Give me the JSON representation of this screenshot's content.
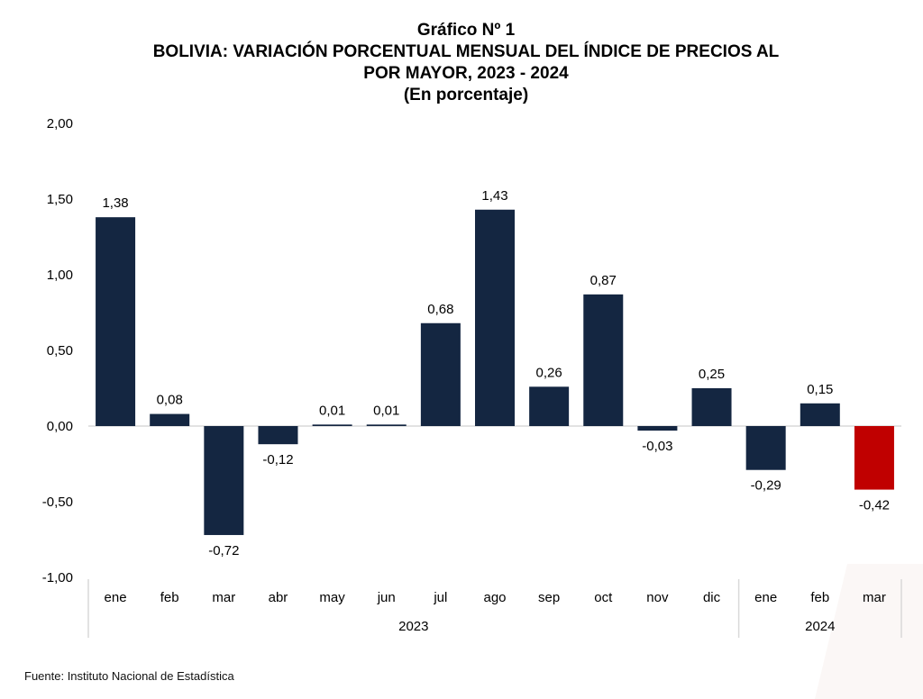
{
  "header": {
    "line1": "Gráfico Nº 1",
    "line2": "BOLIVIA: VARIACIÓN PORCENTUAL MENSUAL DEL ÍNDICE DE PRECIOS AL",
    "line3": "POR MAYOR, 2023 - 2024",
    "line4": "(En porcentaje)"
  },
  "source": "Fuente: Instituto Nacional de Estadística",
  "colors": {
    "bar": "#142641",
    "highlight": "#c00000",
    "axis": "#d9d9d9",
    "text": "#000000"
  },
  "chart_data": {
    "type": "bar",
    "title": "BOLIVIA: VARIACIÓN PORCENTUAL MENSUAL DEL ÍNDICE DE PRECIOS AL POR MAYOR, 2023 - 2024",
    "subtitle": "(En porcentaje)",
    "xlabel": "",
    "ylabel": "",
    "ylim": [
      -1.0,
      2.0
    ],
    "yticks": [
      2.0,
      1.5,
      1.0,
      0.5,
      0.0,
      -0.5,
      -1.0
    ],
    "ytick_labels": [
      "2,00",
      "1,50",
      "1,00",
      "0,50",
      "0,00",
      "-0,50",
      "-1,00"
    ],
    "grid": false,
    "legend": "none",
    "categories": [
      "ene",
      "feb",
      "mar",
      "abr",
      "may",
      "jun",
      "jul",
      "ago",
      "sep",
      "oct",
      "nov",
      "dic",
      "ene",
      "feb",
      "mar"
    ],
    "groups": [
      {
        "label": "2023",
        "start": 0,
        "count": 12
      },
      {
        "label": "2024",
        "start": 12,
        "count": 3
      }
    ],
    "values": [
      1.38,
      0.08,
      -0.72,
      -0.12,
      0.01,
      0.01,
      0.68,
      1.43,
      0.26,
      0.87,
      -0.03,
      0.25,
      -0.29,
      0.15,
      -0.42
    ],
    "value_labels": [
      "1,38",
      "0,08",
      "-0,72",
      "-0,12",
      "0,01",
      "0,01",
      "0,68",
      "1,43",
      "0,26",
      "0,87",
      "-0,03",
      "0,25",
      "-0,29",
      "0,15",
      "-0,42"
    ],
    "highlight_index": 14
  }
}
